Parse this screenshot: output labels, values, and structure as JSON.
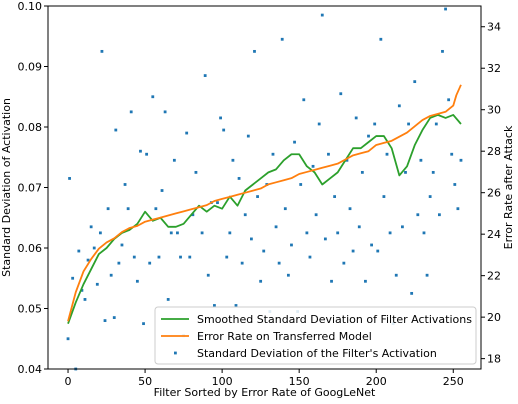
{
  "chart_data": {
    "type": "line",
    "xlabel": "Filter Sorted by Error Rate of GoogLeNet",
    "ylabel_left": "Standard Deviation of Activation",
    "ylabel_right": "Error Rate after Attack",
    "xlim": [
      -13,
      268
    ],
    "ylim_left": [
      0.04,
      0.1
    ],
    "ylim_right": [
      17.5,
      35.0
    ],
    "xticks": [
      0,
      50,
      100,
      150,
      200,
      250
    ],
    "yticks_left": [
      0.04,
      0.05,
      0.06,
      0.07,
      0.08,
      0.09,
      0.1
    ],
    "yticks_left_labels": [
      "0.04",
      "0.05",
      "0.06",
      "0.07",
      "0.08",
      "0.09",
      "0.10"
    ],
    "yticks_right": [
      18,
      20,
      22,
      24,
      26,
      28,
      30,
      32,
      34
    ],
    "grid": false,
    "legend_position": "lower-right",
    "series": [
      {
        "name": "Smoothed Standard Deviation of Filter Activations",
        "axis": "left",
        "color": "#2ca02c",
        "style": "line",
        "x": [
          0,
          5,
          10,
          15,
          20,
          25,
          30,
          35,
          40,
          45,
          50,
          55,
          60,
          65,
          70,
          75,
          80,
          85,
          90,
          95,
          100,
          105,
          110,
          115,
          120,
          125,
          130,
          135,
          140,
          145,
          150,
          155,
          160,
          165,
          170,
          175,
          180,
          185,
          190,
          195,
          200,
          205,
          210,
          215,
          220,
          225,
          230,
          235,
          240,
          245,
          250,
          255
        ],
        "y": [
          0.0475,
          0.051,
          0.054,
          0.0565,
          0.059,
          0.06,
          0.0615,
          0.0625,
          0.063,
          0.064,
          0.066,
          0.0645,
          0.065,
          0.0635,
          0.0635,
          0.064,
          0.0655,
          0.067,
          0.066,
          0.067,
          0.0665,
          0.0685,
          0.067,
          0.0695,
          0.0705,
          0.0715,
          0.0725,
          0.073,
          0.0745,
          0.0755,
          0.0755,
          0.0735,
          0.0725,
          0.0705,
          0.0715,
          0.0725,
          0.0745,
          0.0765,
          0.0765,
          0.0775,
          0.0785,
          0.0785,
          0.0765,
          0.072,
          0.0735,
          0.077,
          0.0795,
          0.0815,
          0.082,
          0.0815,
          0.082,
          0.0805
        ]
      },
      {
        "name": "Error Rate on Transferred Model",
        "axis": "right",
        "color": "#ff7f0e",
        "style": "line",
        "x": [
          0,
          5,
          10,
          15,
          20,
          25,
          30,
          35,
          40,
          45,
          50,
          55,
          60,
          65,
          70,
          75,
          80,
          85,
          90,
          95,
          100,
          105,
          110,
          115,
          120,
          125,
          130,
          135,
          140,
          145,
          150,
          155,
          160,
          165,
          170,
          175,
          180,
          185,
          190,
          195,
          200,
          205,
          210,
          215,
          220,
          225,
          230,
          235,
          240,
          245,
          250,
          252,
          255
        ],
        "y": [
          19.8,
          21.2,
          22.2,
          22.8,
          23.3,
          23.6,
          23.8,
          24.1,
          24.3,
          24.4,
          24.6,
          24.7,
          24.8,
          24.9,
          25.0,
          25.1,
          25.2,
          25.3,
          25.4,
          25.6,
          25.7,
          25.8,
          25.9,
          26.0,
          26.1,
          26.2,
          26.4,
          26.5,
          26.6,
          26.7,
          26.9,
          27.0,
          27.1,
          27.2,
          27.3,
          27.4,
          27.6,
          27.8,
          27.9,
          28.0,
          28.3,
          28.4,
          28.5,
          28.7,
          28.9,
          29.2,
          29.5,
          29.7,
          29.8,
          29.9,
          30.2,
          30.7,
          31.2
        ]
      },
      {
        "name": "Standard Deviation of the Filter's Activation",
        "axis": "left",
        "color": "#1f77b4",
        "style": "scatter",
        "x": [
          0,
          1,
          3,
          5,
          7,
          9,
          11,
          13,
          15,
          17,
          19,
          21,
          22,
          24,
          26,
          28,
          30,
          31,
          33,
          35,
          37,
          39,
          41,
          43,
          45,
          47,
          49,
          51,
          53,
          55,
          57,
          59,
          61,
          63,
          65,
          67,
          69,
          71,
          73,
          75,
          77,
          79,
          81,
          83,
          85,
          87,
          89,
          91,
          93,
          95,
          97,
          99,
          101,
          103,
          105,
          107,
          109,
          111,
          113,
          115,
          117,
          119,
          121,
          123,
          125,
          127,
          129,
          131,
          133,
          135,
          137,
          139,
          141,
          143,
          145,
          147,
          149,
          151,
          153,
          155,
          157,
          159,
          161,
          163,
          165,
          167,
          169,
          171,
          173,
          175,
          177,
          179,
          181,
          183,
          185,
          187,
          189,
          191,
          193,
          195,
          197,
          199,
          201,
          203,
          205,
          207,
          209,
          211,
          213,
          215,
          217,
          219,
          221,
          223,
          225,
          227,
          229,
          231,
          233,
          235,
          237,
          239,
          241,
          243,
          245,
          247,
          249,
          251,
          253,
          255
        ],
        "y": [
          0.045,
          0.0715,
          0.055,
          0.04,
          0.0595,
          0.053,
          0.0515,
          0.058,
          0.0635,
          0.06,
          0.054,
          0.0625,
          0.0925,
          0.048,
          0.0665,
          0.0555,
          0.0485,
          0.0795,
          0.0575,
          0.0605,
          0.0705,
          0.0665,
          0.0825,
          0.0585,
          0.0545,
          0.076,
          0.0475,
          0.0755,
          0.0575,
          0.085,
          0.0665,
          0.0585,
          0.0695,
          0.0825,
          0.0515,
          0.0625,
          0.0745,
          0.0625,
          0.0585,
          0.0455,
          0.079,
          0.0585,
          0.0655,
          0.0725,
          0.0455,
          0.0625,
          0.0885,
          0.0555,
          0.0675,
          0.0505,
          0.0675,
          0.0815,
          0.0795,
          0.0585,
          0.0625,
          0.0745,
          0.0505,
          0.0715,
          0.0575,
          0.0655,
          0.0785,
          0.0615,
          0.0925,
          0.0685,
          0.0545,
          0.0595,
          0.0705,
          0.0495,
          0.0755,
          0.0635,
          0.0575,
          0.0945,
          0.0665,
          0.0555,
          0.0605,
          0.0775,
          0.0495,
          0.0705,
          0.0845,
          0.0625,
          0.0585,
          0.0735,
          0.0655,
          0.0805,
          0.0985,
          0.0615,
          0.0755,
          0.0545,
          0.0685,
          0.0625,
          0.0855,
          0.0575,
          0.0745,
          0.0665,
          0.0595,
          0.0815,
          0.0635,
          0.0725,
          0.0545,
          0.0785,
          0.0605,
          0.0805,
          0.0595,
          0.0945,
          0.0685,
          0.0755,
          0.0625,
          0.0475,
          0.0555,
          0.0835,
          0.0635,
          0.0725,
          0.0805,
          0.0525,
          0.0875,
          0.0655,
          0.0745,
          0.0625,
          0.0555,
          0.0685,
          0.0725,
          0.0805,
          0.0655,
          0.0925,
          0.0995,
          0.0845,
          0.0755,
          0.0705,
          0.0665,
          0.0745
        ]
      }
    ]
  }
}
